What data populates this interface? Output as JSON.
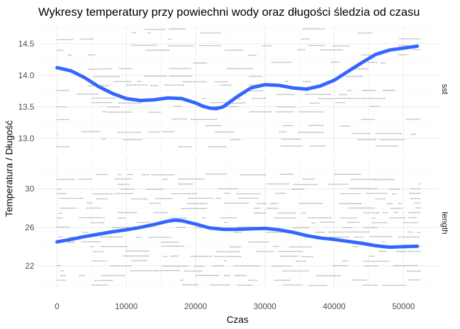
{
  "chart_data": {
    "type": "line",
    "title": "Wykresy temperatury przy powiechni wody oraz długości śledzia od czasu",
    "xlabel": "Czas",
    "ylabel": "Temperatura / Długość",
    "x_ticks": [
      0,
      10000,
      20000,
      30000,
      40000,
      50000
    ],
    "xlim": [
      -2700,
      55000
    ],
    "colors": {
      "smooth": "#3366ff",
      "points": "#aaaaaa",
      "grid_major": "#ebebeb",
      "grid_minor": "#f5f5f5"
    },
    "grid": true,
    "panels": [
      {
        "name": "sst",
        "ylim": [
          12.78,
          14.78
        ],
        "y_ticks": [
          13.0,
          13.5,
          14.0,
          14.5
        ],
        "y_tick_labels": [
          "13.0",
          "13.5",
          "14.0",
          "14.5"
        ],
        "smooth": {
          "x": [
            0,
            2000,
            4000,
            6000,
            8000,
            10000,
            12000,
            14000,
            16000,
            18000,
            20000,
            21000,
            22000,
            23000,
            24000,
            26000,
            28000,
            30000,
            32000,
            34000,
            36000,
            38000,
            40000,
            42000,
            44000,
            46000,
            48000,
            50000,
            52000
          ],
          "y": [
            14.12,
            14.07,
            13.96,
            13.82,
            13.71,
            13.63,
            13.6,
            13.61,
            13.64,
            13.63,
            13.56,
            13.51,
            13.48,
            13.47,
            13.5,
            13.66,
            13.8,
            13.85,
            13.84,
            13.8,
            13.78,
            13.83,
            13.92,
            14.06,
            14.2,
            14.33,
            14.4,
            14.43,
            14.46
          ]
        },
        "obs_levels": [
          14.73,
          14.67,
          14.57,
          14.47,
          14.4,
          14.32,
          14.2,
          14.1,
          13.98,
          13.9,
          13.84,
          13.76,
          13.7,
          13.63,
          13.56,
          13.5,
          13.42,
          13.3,
          13.2,
          13.1,
          13.07,
          12.98,
          12.87
        ]
      },
      {
        "name": "length",
        "ylim": [
          19.5,
          33.4
        ],
        "y_ticks": [
          22,
          26,
          30
        ],
        "y_tick_labels": [
          "22",
          "26",
          "30"
        ],
        "smooth": {
          "x": [
            0,
            2000,
            4000,
            6000,
            8000,
            10000,
            12000,
            14000,
            16000,
            17000,
            18000,
            20000,
            22000,
            24000,
            26000,
            28000,
            30000,
            32000,
            34000,
            36000,
            38000,
            40000,
            42000,
            44000,
            46000,
            48000,
            50000,
            52000
          ],
          "y": [
            24.5,
            24.75,
            25.05,
            25.3,
            25.55,
            25.75,
            26.0,
            26.3,
            26.65,
            26.75,
            26.7,
            26.35,
            25.95,
            25.8,
            25.8,
            25.85,
            25.9,
            25.75,
            25.5,
            25.15,
            24.9,
            24.75,
            24.55,
            24.35,
            24.1,
            23.95,
            24.0,
            24.05
          ]
        },
        "obs_levels": [
          31.5,
          31.0,
          30.5,
          30.0,
          29.5,
          29.0,
          28.5,
          28.0,
          27.5,
          27.0,
          26.5,
          26.0,
          25.5,
          25.0,
          24.5,
          24.0,
          23.5,
          23.0,
          22.5,
          22.0,
          21.5,
          21.0,
          20.5,
          20.0
        ]
      }
    ]
  }
}
